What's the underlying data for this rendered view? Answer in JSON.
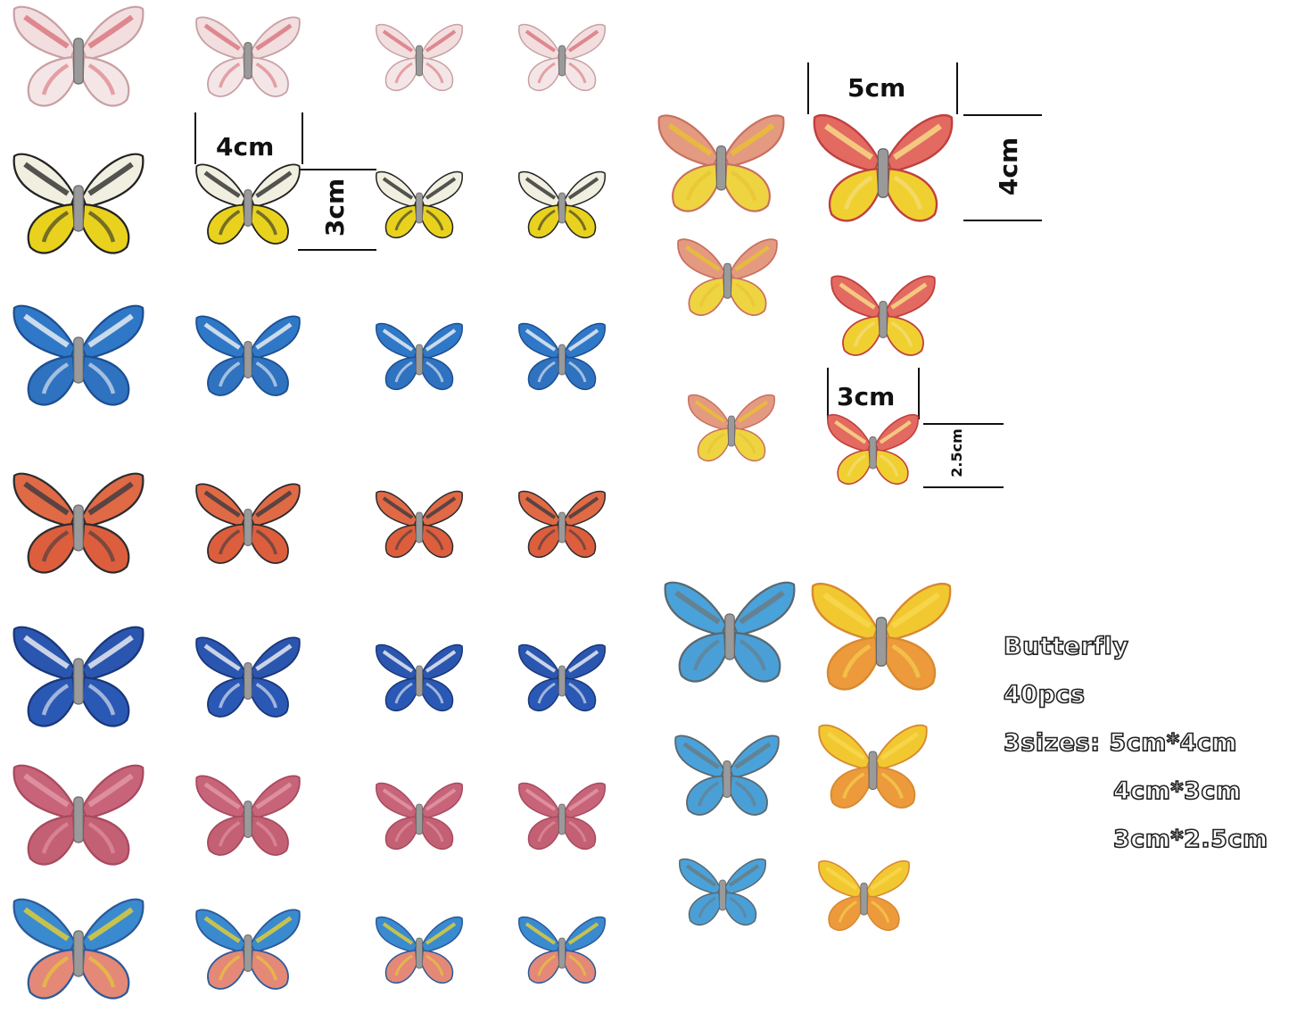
{
  "dimensions": {
    "large_width": "5cm",
    "large_height": "4cm",
    "medium_width": "4cm",
    "medium_height": "3cm",
    "small_width": "3cm",
    "small_height": "2.5cm"
  },
  "spec": {
    "name": "Butterfly",
    "count": "40pcs",
    "sizes_line1": "3sizes: 5cm*4cm",
    "sizes_line2": "4cm*3cm",
    "sizes_line3": "3cm*2.5cm"
  },
  "palettes": {
    "pink_white": {
      "upper": "#f2dede",
      "lower": "#f4e6e6",
      "accent": "#d9707a",
      "edge": "#c9a0a4"
    },
    "yellow_black": {
      "upper": "#f1efe0",
      "lower": "#e8d21e",
      "accent": "#2a2a2a",
      "edge": "#222222"
    },
    "blue_white": {
      "upper": "#2f78c8",
      "lower": "#2e72c0",
      "accent": "#f4f4f4",
      "edge": "#1d4f90"
    },
    "orange_brown": {
      "upper": "#e06a45",
      "lower": "#dd5e3c",
      "accent": "#3a3a40",
      "edge": "#2c2c30"
    },
    "navy_white": {
      "upper": "#2a56b0",
      "lower": "#2a58b5",
      "accent": "#f4f4f4",
      "edge": "#1a3778"
    },
    "rose": {
      "upper": "#c8647a",
      "lower": "#c46074",
      "accent": "#e29aa8",
      "edge": "#a84a5e"
    },
    "rainbow": {
      "upper": "#3a8ad0",
      "lower": "#e48878",
      "accent": "#e8d030",
      "edge": "#2a5a9a"
    },
    "salmon_yellow": {
      "upper": "#e49a80",
      "lower": "#eed440",
      "accent": "#e8c030",
      "edge": "#c87060"
    },
    "red_yellow": {
      "upper": "#e36a60",
      "lower": "#f0d030",
      "accent": "#f7e08a",
      "edge": "#c04040"
    },
    "sky_blue": {
      "upper": "#4aa2da",
      "lower": "#4aa0d6",
      "accent": "#6a7a80",
      "edge": "#5a6870"
    },
    "golden": {
      "upper": "#f2c830",
      "lower": "#ec9a3c",
      "accent": "#f6d850",
      "edge": "#d88a30"
    }
  }
}
